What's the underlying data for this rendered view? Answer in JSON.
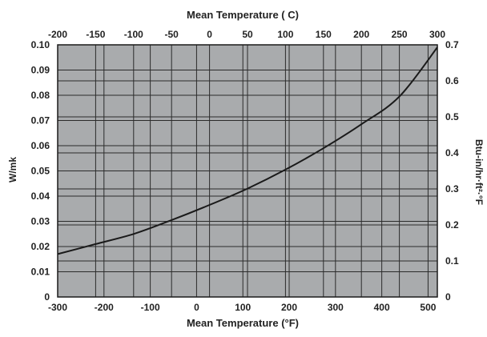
{
  "chart_data": {
    "type": "line",
    "title": "",
    "top_axis_label": "Mean Temperature ( C)",
    "bottom_axis_label": "Mean Temperature (°F)",
    "left_axis_label": "W/mk",
    "right_axis_label": "Btu-in/hr·ft²·°F",
    "top_axis": {
      "min": -200,
      "max": 300,
      "ticks": [
        -200,
        -150,
        -100,
        -50,
        0,
        50,
        100,
        150,
        200,
        250,
        300
      ]
    },
    "bottom_axis": {
      "min": -300,
      "max": 520,
      "ticks": [
        -300,
        -200,
        -100,
        0,
        100,
        200,
        300,
        400,
        500
      ]
    },
    "left_axis": {
      "min": 0,
      "max": 0.1,
      "ticks": [
        "0",
        "0.01",
        "0.02",
        "0.03",
        "0.04",
        "0.05",
        "0.06",
        "0.07",
        "0.08",
        "0.09",
        "0.10"
      ]
    },
    "right_axis": {
      "min": 0,
      "max": 0.7,
      "ticks": [
        "0",
        "0.1",
        "0.2",
        "0.3",
        "0.4",
        "0.5",
        "0.6",
        "0.7"
      ]
    },
    "grid": true,
    "background_color": "#a9abad",
    "line_color": "#1a1a1a",
    "series": [
      {
        "x_unit": "C",
        "y_unit": "W/mk",
        "x": [
          -200,
          -150,
          -100,
          -50,
          0,
          50,
          100,
          150,
          200,
          250,
          300
        ],
        "y": [
          0.017,
          0.021,
          0.025,
          0.0305,
          0.0365,
          0.043,
          0.0505,
          0.059,
          0.0685,
          0.0795,
          0.099
        ]
      }
    ]
  }
}
